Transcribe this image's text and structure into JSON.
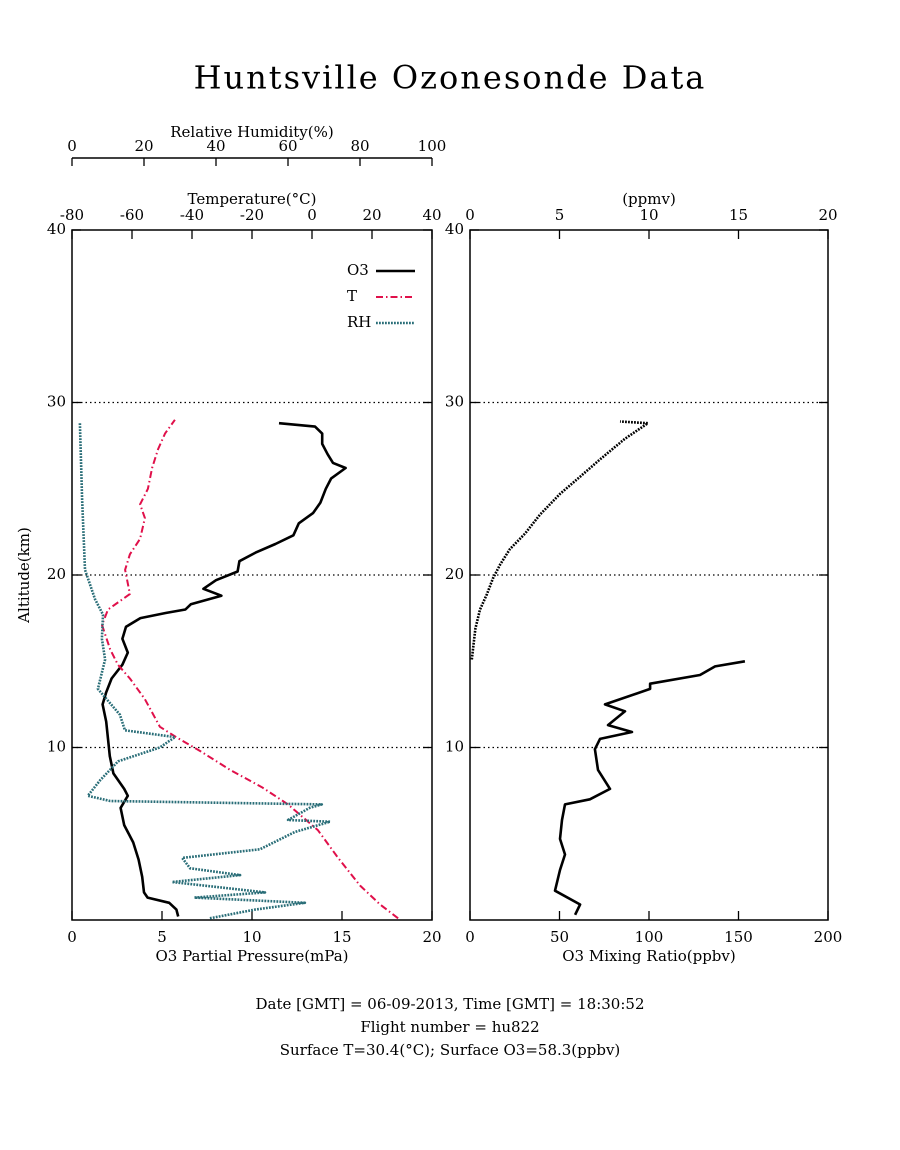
{
  "title": "Huntsville Ozonesonde Data",
  "notes": [
    "Date [GMT] = 06-09-2013,  Time [GMT] = 18:30:52",
    "Flight number = hu822",
    "Surface T=30.4(°C); Surface O3=58.3(ppbv)"
  ],
  "chart_data": [
    {
      "type": "line",
      "ylabel": "Altitude(km)",
      "ylim": [
        0,
        40
      ],
      "yticks": [
        10,
        20,
        30,
        40
      ],
      "grid": "dotted",
      "legend": "upper right",
      "xlabel": "O3 Partial Pressure(mPa)",
      "xlim": [
        0,
        20
      ],
      "xticks": [
        0,
        5,
        10,
        15,
        20
      ],
      "x2label": "Temperature(°C)",
      "x2lim": [
        -80,
        40
      ],
      "x2ticks": [
        -80,
        -60,
        -40,
        -20,
        0,
        20,
        40
      ],
      "x3label": "Relative Humidity(%)",
      "x3lim": [
        0,
        100
      ],
      "x3ticks": [
        0,
        20,
        40,
        60,
        80,
        100
      ],
      "series": [
        {
          "name": "O3",
          "color": "#000000",
          "style": "solid",
          "axis": "x",
          "altitude": [
            0.2,
            0.6,
            1.0,
            1.3,
            1.6,
            2.5,
            3.5,
            4.5,
            5.5,
            6.5,
            7.2,
            7.6,
            8.5,
            9.5,
            10.5,
            11.5,
            12.5,
            13.2,
            14.0,
            14.8,
            15.5,
            16.3,
            17.0,
            17.5,
            17.8,
            18.0,
            18.3,
            18.8,
            19.2,
            19.7,
            20.2,
            20.8,
            21.3,
            21.8,
            22.3,
            23.0,
            23.6,
            24.2,
            25.0,
            25.6,
            26.2,
            26.5,
            27.0,
            27.6,
            28.2,
            28.6,
            28.8
          ],
          "values": [
            5.9,
            5.8,
            5.4,
            4.2,
            4.0,
            3.9,
            3.7,
            3.4,
            2.9,
            2.7,
            3.1,
            2.9,
            2.3,
            2.1,
            2.0,
            1.9,
            1.7,
            1.9,
            2.2,
            2.8,
            3.1,
            2.8,
            3.0,
            3.8,
            5.2,
            6.3,
            6.6,
            8.3,
            7.3,
            8.0,
            9.2,
            9.3,
            10.2,
            11.3,
            12.3,
            12.6,
            13.4,
            13.8,
            14.1,
            14.4,
            15.2,
            14.5,
            14.2,
            13.9,
            13.9,
            13.5,
            11.5
          ]
        },
        {
          "name": "T",
          "color": "#e0104a",
          "style": "dashdot",
          "axis": "x2",
          "altitude": [
            0.1,
            0.9,
            2.0,
            3.6,
            5.2,
            6.7,
            7.7,
            8.7,
            9.8,
            10.6,
            11.2,
            12.8,
            14.0,
            14.8,
            15.7,
            17.1,
            18.0,
            18.7,
            18.9,
            20.3,
            21.2,
            22.1,
            23.3,
            24.1,
            25.0,
            26.2,
            27.3,
            28.2,
            29.0
          ],
          "values": [
            28.7,
            22.7,
            16,
            8.7,
            2,
            -8,
            -16.7,
            -27.3,
            -37.3,
            -45.3,
            -50.7,
            -55.7,
            -60.7,
            -64.7,
            -67.3,
            -70,
            -68,
            -62.3,
            -60.7,
            -62.3,
            -60.7,
            -57.3,
            -55.7,
            -57.3,
            -54.7,
            -53.3,
            -51.3,
            -49,
            -45.7
          ]
        },
        {
          "name": "RH",
          "color": "#2a6e78",
          "style": "dotted",
          "axis": "x3",
          "altitude": [
            0.1,
            0.6,
            1.0,
            1.3,
            1.6,
            2.2,
            2.6,
            3.0,
            3.6,
            4.1,
            5.1,
            5.7,
            5.8,
            6.5,
            6.7,
            6.9,
            7.2,
            8.1,
            9.2,
            10.0,
            10.6,
            11.0,
            11.9,
            13.4,
            15.1,
            16.3,
            17.7,
            18.6,
            20.3,
            24.4,
            28.8
          ],
          "values": [
            38.3,
            50.8,
            64.7,
            34,
            53.6,
            27.8,
            46.7,
            32.8,
            30.6,
            52.2,
            61.9,
            71.7,
            60,
            66,
            69.4,
            10.6,
            4.4,
            7.8,
            12.8,
            24.4,
            28.6,
            14.7,
            13.3,
            7.2,
            9.2,
            8.3,
            8.6,
            6.4,
            3.6,
            2.8,
            2.2
          ]
        }
      ]
    },
    {
      "type": "line",
      "ylim": [
        0,
        40
      ],
      "yticks": [
        10,
        20,
        30,
        40
      ],
      "grid": "dotted",
      "xlabel": "O3 Mixing Ratio(ppbv)",
      "xlim": [
        0,
        200
      ],
      "xticks": [
        0,
        50,
        100,
        150,
        200
      ],
      "x2label": "(ppmv)",
      "x2lim": [
        0,
        20
      ],
      "x2ticks": [
        0,
        5,
        10,
        15,
        20
      ],
      "series": [
        {
          "color": "#000000",
          "style": "solid",
          "axis": "x",
          "altitude": [
            0.3,
            0.9,
            1.7,
            2.9,
            3.8,
            4.7,
            5.8,
            6.7,
            7.0,
            7.6,
            8.7,
            9.9,
            10.5,
            10.9,
            11.3,
            12.1,
            12.5,
            13.4,
            13.7,
            14.2,
            14.7,
            15.0
          ],
          "values": [
            58.7,
            61.5,
            47.5,
            50.3,
            53.1,
            50.3,
            51.4,
            53.1,
            67,
            78.2,
            71.5,
            69.8,
            72.6,
            90.5,
            77.1,
            86.6,
            75.4,
            100.6,
            100.6,
            128.5,
            136.9,
            153.6
          ]
        },
        {
          "color": "#000000",
          "style": "dotted",
          "axis": "x2",
          "altitude": [
            15.1,
            16.9,
            18.0,
            18.9,
            19.8,
            20.6,
            21.5,
            22.4,
            23.5,
            24.7,
            25.7,
            26.7,
            27.9,
            28.8,
            28.9
          ],
          "values": [
            0.1,
            0.3,
            0.56,
            0.95,
            1.28,
            1.68,
            2.23,
            3.07,
            3.91,
            5.03,
            6.15,
            7.26,
            8.66,
            9.94,
            8.38
          ]
        }
      ]
    }
  ]
}
